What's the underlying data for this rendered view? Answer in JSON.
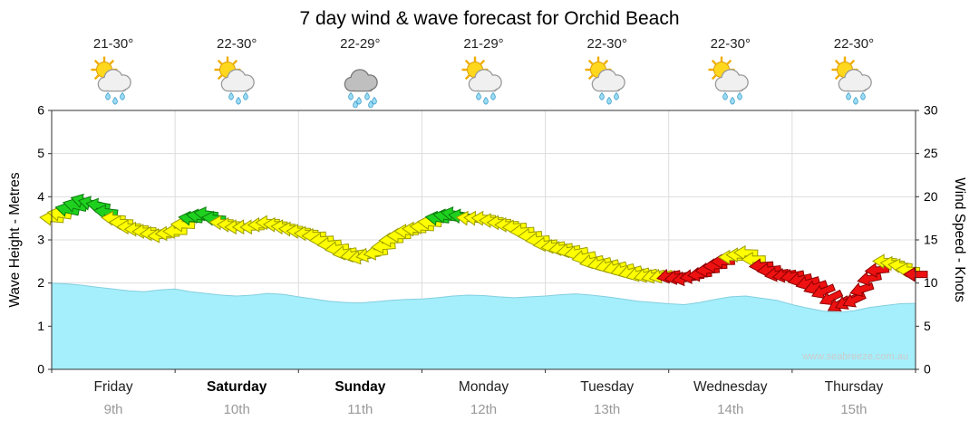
{
  "title": "7 day wind & wave forecast for Orchid Beach",
  "watermark": "www.seabreeze.com.au",
  "axes": {
    "left_label": "Wave Height - Metres",
    "right_label": "Wind Speed - Knots",
    "wave_ticks": [
      0,
      1,
      2,
      3,
      4,
      5,
      6
    ],
    "wind_ticks": [
      0,
      5,
      10,
      15,
      20,
      25,
      30
    ]
  },
  "days": [
    {
      "name": "Friday",
      "date": "9th",
      "temp": "21-30°",
      "icon": "sun-cloud-rain",
      "weekend": false
    },
    {
      "name": "Saturday",
      "date": "10th",
      "temp": "22-30°",
      "icon": "sun-cloud-rain",
      "weekend": true
    },
    {
      "name": "Sunday",
      "date": "11th",
      "temp": "22-29°",
      "icon": "cloud-rain",
      "weekend": true
    },
    {
      "name": "Monday",
      "date": "12th",
      "temp": "21-29°",
      "icon": "sun-cloud-rain",
      "weekend": false
    },
    {
      "name": "Tuesday",
      "date": "13th",
      "temp": "22-30°",
      "icon": "sun-cloud-rain",
      "weekend": false
    },
    {
      "name": "Wednesday",
      "date": "14th",
      "temp": "22-30°",
      "icon": "sun-cloud-rain",
      "weekend": false
    },
    {
      "name": "Thursday",
      "date": "15th",
      "temp": "22-30°",
      "icon": "sun-cloud-rain",
      "weekend": false
    }
  ],
  "chart_data": {
    "type": "area",
    "note": "wave height cyan area (left axis, metres) plus wind-speed arrow chain (right axis, knots); 3-hourly samples over 7 days",
    "wave_ylim": [
      0,
      6
    ],
    "wind_ylim": [
      0,
      30
    ],
    "samples_per_day": 8,
    "wave_heights_m": [
      2.0,
      1.98,
      1.95,
      1.9,
      1.86,
      1.82,
      1.8,
      1.84,
      1.86,
      1.8,
      1.76,
      1.72,
      1.7,
      1.72,
      1.76,
      1.74,
      1.68,
      1.63,
      1.58,
      1.55,
      1.54,
      1.57,
      1.6,
      1.62,
      1.63,
      1.66,
      1.7,
      1.72,
      1.71,
      1.68,
      1.66,
      1.68,
      1.7,
      1.73,
      1.75,
      1.72,
      1.68,
      1.63,
      1.58,
      1.55,
      1.52,
      1.5,
      1.55,
      1.62,
      1.68,
      1.7,
      1.65,
      1.6,
      1.5,
      1.42,
      1.35,
      1.32,
      1.36,
      1.43,
      1.48,
      1.52,
      1.53
    ],
    "wind_speeds_kn": [
      17.5,
      18.5,
      19.5,
      19,
      17.5,
      16.5,
      16,
      15.5,
      16,
      17.5,
      18,
      17,
      16.5,
      16.5,
      17,
      16.5,
      16,
      15.5,
      14.5,
      13.5,
      13,
      13.5,
      15,
      16,
      16.5,
      17.5,
      18,
      17.5,
      17.5,
      17,
      16.5,
      15.5,
      14.5,
      14,
      13.5,
      12.5,
      12,
      11.5,
      11,
      10.8,
      10.8,
      10.5,
      11,
      12,
      13,
      13.5,
      12,
      11,
      10.8,
      10,
      9,
      7.5,
      8,
      10.5,
      12.5,
      12,
      11
    ],
    "wind_dirs_deg": [
      185,
      192,
      196,
      190,
      184,
      180,
      178,
      176,
      180,
      186,
      188,
      182,
      179,
      178,
      180,
      183,
      181,
      178,
      175,
      171,
      168,
      172,
      177,
      181,
      183,
      187,
      189,
      185,
      182,
      180,
      177,
      175,
      174,
      171,
      169,
      167,
      165,
      164,
      164,
      166,
      168,
      171,
      174,
      177,
      180,
      182,
      176,
      171,
      169,
      164,
      158,
      150,
      155,
      168,
      182,
      186,
      180
    ],
    "wind_colors": [
      "y",
      "g",
      "g",
      "g",
      "y",
      "y",
      "y",
      "y",
      "y",
      "g",
      "g",
      "y",
      "y",
      "y",
      "y",
      "y",
      "y",
      "y",
      "y",
      "y",
      "y",
      "y",
      "y",
      "y",
      "y",
      "g",
      "g",
      "y",
      "y",
      "y",
      "y",
      "y",
      "y",
      "y",
      "y",
      "y",
      "y",
      "y",
      "y",
      "y",
      "r",
      "r",
      "r",
      "r",
      "y",
      "y",
      "r",
      "r",
      "r",
      "r",
      "r",
      "r",
      "r",
      "r",
      "y",
      "y",
      "r"
    ],
    "colors": {
      "wave_fill": "#a5eefb",
      "wave_edge": "#84cfe0",
      "green": "#1fd11f",
      "yellow": "#ffff00",
      "red": "#ee1111",
      "grid": "#dddddd",
      "axis": "#333333"
    }
  }
}
